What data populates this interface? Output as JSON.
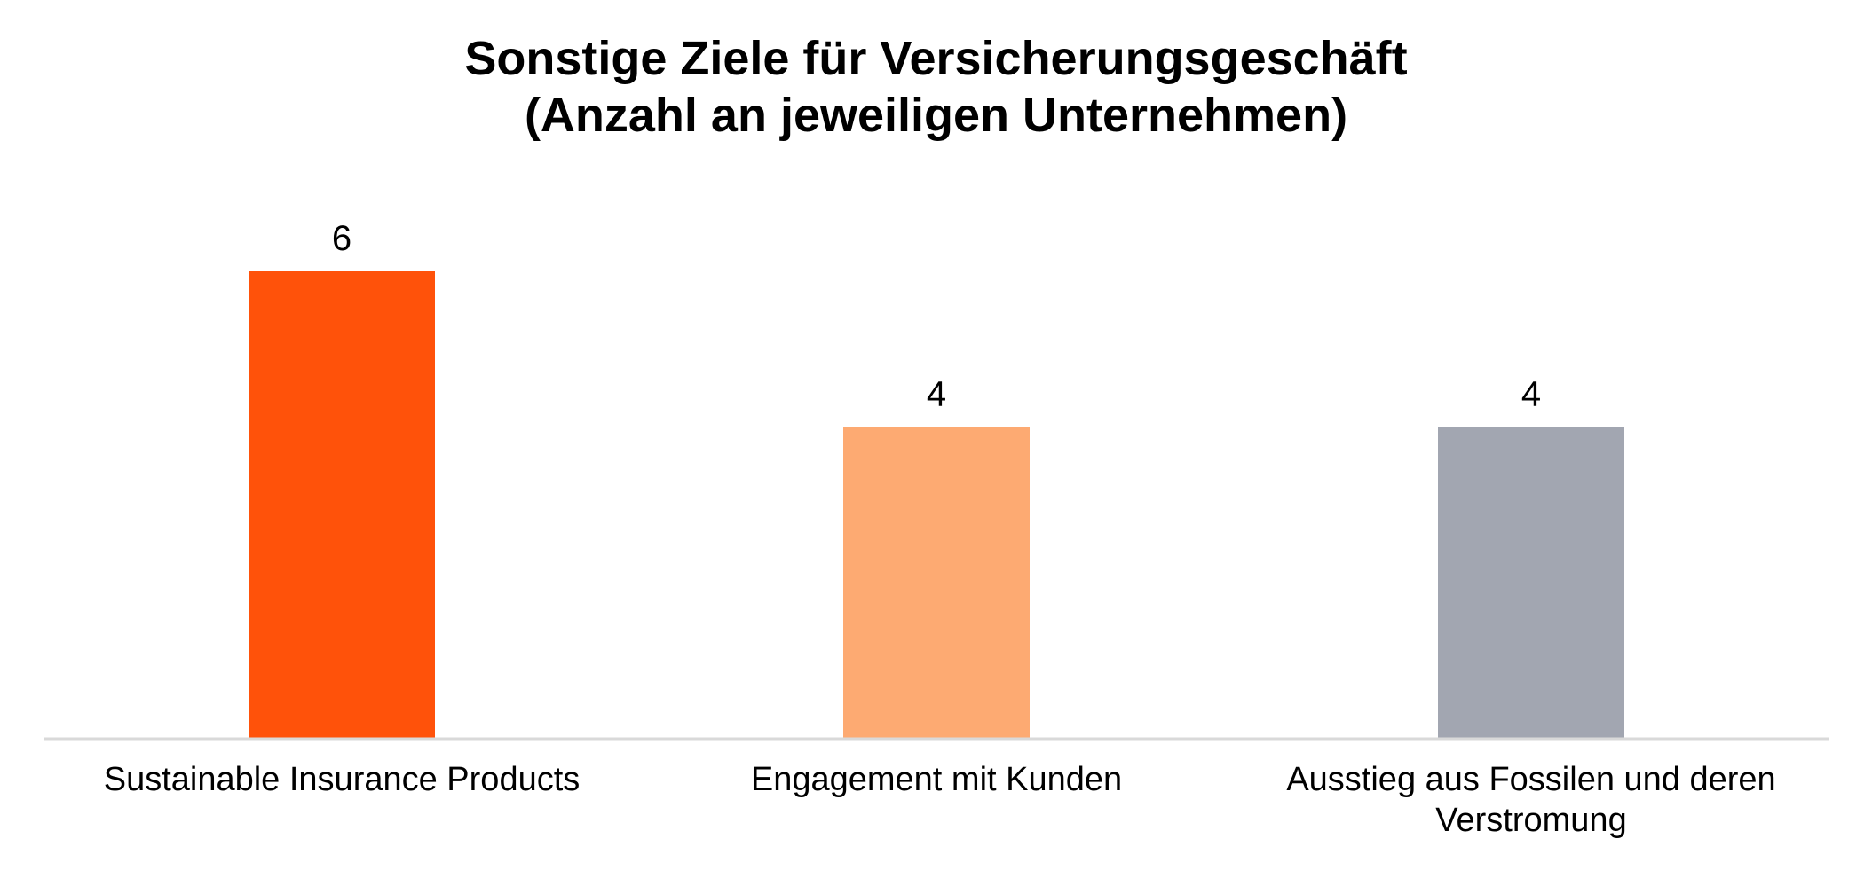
{
  "chart_data": {
    "type": "bar",
    "title": "Sonstige Ziele für Versicherungsgeschäft",
    "subtitle": "(Anzahl an jeweiligen Unternehmen)",
    "categories": [
      "Sustainable Insurance Products",
      "Engagement mit Kunden",
      "Ausstieg aus Fossilen und deren Verstromung"
    ],
    "values": [
      6,
      4,
      4
    ],
    "colors": [
      "#ff520a",
      "#fdaa72",
      "#a2a6b1"
    ],
    "axis_color": "#d9d9d9",
    "ylim": [
      0,
      6
    ],
    "grid": false,
    "legend": "none",
    "data_labels": true
  }
}
